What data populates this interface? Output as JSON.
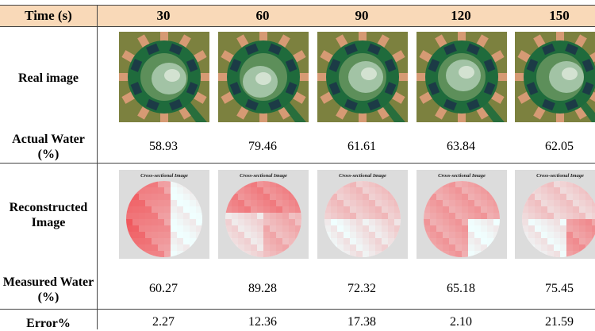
{
  "header": {
    "time_label": "Time (s)",
    "times": [
      "30",
      "60",
      "90",
      "120",
      "150"
    ]
  },
  "rows": {
    "real_image_label": "Real image",
    "actual_water_label": "Actual Water (%)",
    "actual_water_values": [
      "58.93",
      "79.46",
      "61.61",
      "63.84",
      "62.05"
    ],
    "reconstructed_label": "Reconstructed Image",
    "reconstructed_caption": "Cross-sectional Image",
    "measured_water_label": "Measured Water (%)",
    "measured_water_values": [
      "60.27",
      "89.28",
      "72.32",
      "65.18",
      "75.45"
    ],
    "error_label": "Error%",
    "error_values": [
      "2.27",
      "12.36",
      "17.38",
      "2.10",
      "21.59"
    ]
  },
  "colors": {
    "header_bg": "#f9d9b8",
    "sensor_green": "#1f6b3c",
    "recon_red": "#f06a6e"
  }
}
